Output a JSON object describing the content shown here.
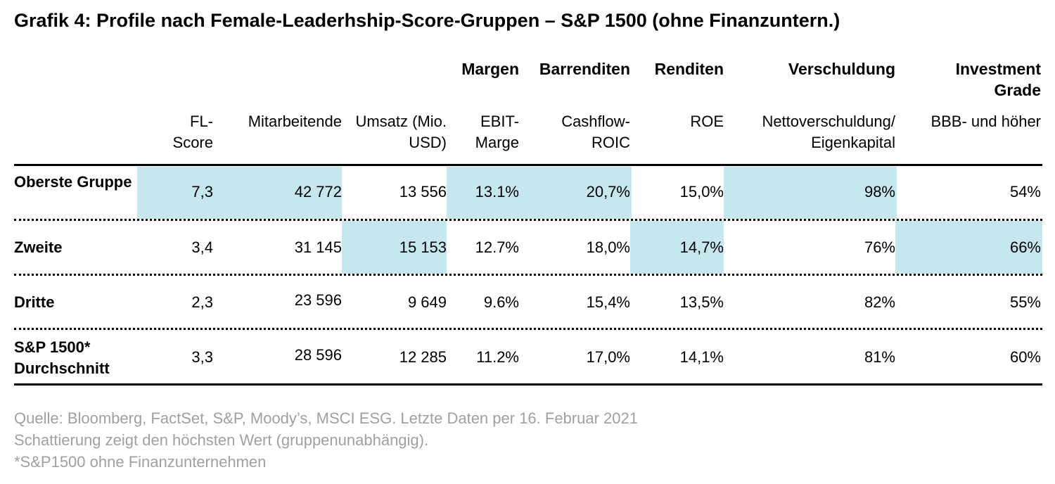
{
  "title": "Grafik 4: Profile nach Female-Leaderhship-Score-Gruppen – S&P 1500 (ohne Finanzuntern.)",
  "group_headers": [
    {
      "label": "Margen"
    },
    {
      "label": "Barrenditen"
    },
    {
      "label": "Renditen"
    },
    {
      "label": "Verschuldung"
    },
    {
      "label": "Investment Grade"
    }
  ],
  "columns": [
    {
      "label": "FL-Score"
    },
    {
      "label": "Mitarbeitende"
    },
    {
      "label": "Umsatz (Mio. USD)"
    },
    {
      "label": "EBIT-Marge"
    },
    {
      "label": "Cashflow-ROIC"
    },
    {
      "label": "ROE"
    },
    {
      "label": "Nettoverschuldung/ Eigenkapital"
    },
    {
      "label": "BBB- und höher"
    }
  ],
  "rows": [
    {
      "label": "Oberste Gruppe",
      "values": [
        "7,3",
        "42 772",
        "13 556",
        "13.1%",
        "20,7%",
        "15,0%",
        "98%",
        "54%"
      ],
      "highlighted": [
        true,
        true,
        false,
        true,
        true,
        false,
        true,
        false
      ]
    },
    {
      "label": "Zweite",
      "values": [
        "3,4",
        "31 145",
        "15 153",
        "12.7%",
        "18,0%",
        "14,7%",
        "76%",
        "66%"
      ],
      "highlighted": [
        false,
        false,
        true,
        false,
        false,
        true,
        false,
        true
      ]
    },
    {
      "label": "Dritte",
      "values": [
        "2,3",
        "23 596",
        "9 649",
        "9.6%",
        "15,4%",
        "13,5%",
        "82%",
        "55%"
      ],
      "highlighted": [
        false,
        false,
        false,
        false,
        false,
        false,
        false,
        false
      ]
    },
    {
      "label": "S&P 1500* Durchschnitt",
      "values": [
        "3,3",
        "28 596",
        "12 285",
        "11.2%",
        "17,0%",
        "14,1%",
        "81%",
        "60%"
      ],
      "highlighted": [
        false,
        false,
        false,
        false,
        false,
        false,
        false,
        false
      ]
    }
  ],
  "shade_color": "#c7e7ee",
  "footnotes": [
    "Quelle: Bloomberg, FactSet, S&P, Moody’s, MSCI ESG. Letzte Daten per 16. Februar 2021",
    "Schattierung zeigt den höchsten Wert (gruppenunabhängig).",
    "*S&P1500 ohne Finanzunternehmen"
  ]
}
